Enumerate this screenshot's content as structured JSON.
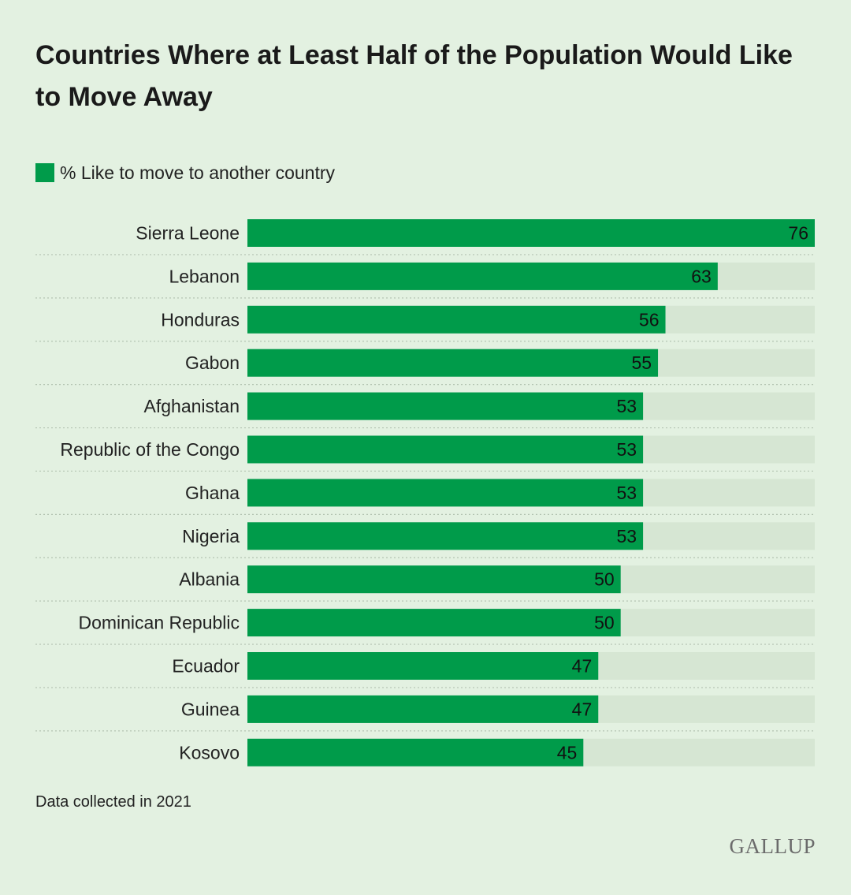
{
  "chart_data": {
    "type": "bar",
    "orientation": "horizontal",
    "title": "Countries Where at Least Half of the Population Would Like to Move Away",
    "legend": [
      "% Like to move to another country"
    ],
    "categories": [
      "Sierra Leone",
      "Lebanon",
      "Honduras",
      "Gabon",
      "Afghanistan",
      "Republic of the Congo",
      "Ghana",
      "Nigeria",
      "Albania",
      "Dominican Republic",
      "Ecuador",
      "Guinea",
      "Kosovo"
    ],
    "series": [
      {
        "name": "% Like to move to another country",
        "values": [
          76,
          63,
          56,
          55,
          53,
          53,
          53,
          53,
          50,
          50,
          47,
          47,
          45
        ]
      }
    ],
    "xlim": [
      0,
      76
    ],
    "xlabel": "",
    "ylabel": "",
    "grid": false
  },
  "footnote": "Data collected in 2021",
  "logo": "GALLUP",
  "colors": {
    "background": "#e3f1e1",
    "bar": "#009b4a",
    "track": "#d6e6d3",
    "separator": "#b4c4b2"
  }
}
